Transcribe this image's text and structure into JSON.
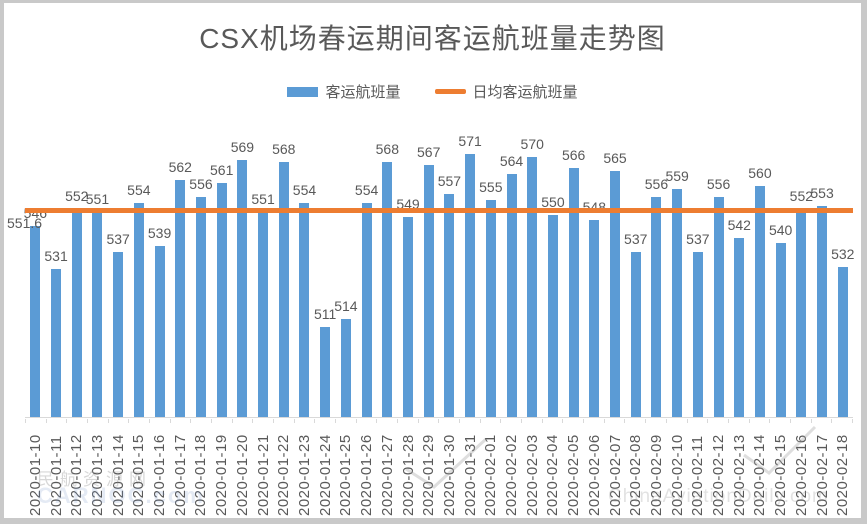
{
  "title": "CSX机场春运期间客运航班量走势图",
  "legend": {
    "bars_label": "客运航班量",
    "line_label": "日均客运航班量"
  },
  "average": {
    "label": "551.6",
    "value": 551.6
  },
  "colors": {
    "bar": "#5B9BD5",
    "line": "#ED7D31",
    "text": "#595959",
    "axis": "#d9d9d9"
  },
  "watermarks": {
    "left_line1": "民航资源网",
    "left_line2": "CARNOC.com",
    "right": "ChinaAviationDaily.com"
  },
  "chart_data": {
    "type": "bar",
    "title": "CSX机场春运期间客运航班量走势图",
    "xlabel": "",
    "ylabel": "",
    "ylim": [
      480,
      582
    ],
    "grid": false,
    "legend_position": "top",
    "data_labels": true,
    "categories": [
      "2020-01-10",
      "2020-01-11",
      "2020-01-12",
      "2020-01-13",
      "2020-01-14",
      "2020-01-15",
      "2020-01-16",
      "2020-01-17",
      "2020-01-18",
      "2020-01-19",
      "2020-01-20",
      "2020-01-21",
      "2020-01-22",
      "2020-01-23",
      "2020-01-24",
      "2020-01-25",
      "2020-01-26",
      "2020-01-27",
      "2020-01-28",
      "2020-01-29",
      "2020-01-30",
      "2020-01-31",
      "2020-02-01",
      "2020-02-02",
      "2020-02-03",
      "2020-02-04",
      "2020-02-05",
      "2020-02-06",
      "2020-02-07",
      "2020-02-08",
      "2020-02-09",
      "2020-02-10",
      "2020-02-11",
      "2020-02-12",
      "2020-02-13",
      "2020-02-14",
      "2020-02-15",
      "2020-02-16",
      "2020-02-17",
      "2020-02-18"
    ],
    "series": [
      {
        "name": "客运航班量",
        "type": "bar",
        "color": "#5B9BD5",
        "values": [
          546,
          531,
          552,
          551,
          537,
          554,
          539,
          562,
          556,
          561,
          569,
          551,
          568,
          554,
          511,
          514,
          554,
          568,
          549,
          567,
          557,
          571,
          555,
          564,
          570,
          550,
          566,
          548,
          565,
          537,
          556,
          559,
          537,
          556,
          542,
          560,
          540,
          552,
          553,
          532
        ]
      },
      {
        "name": "日均客运航班量",
        "type": "line",
        "color": "#ED7D31",
        "value": 551.6
      }
    ]
  }
}
